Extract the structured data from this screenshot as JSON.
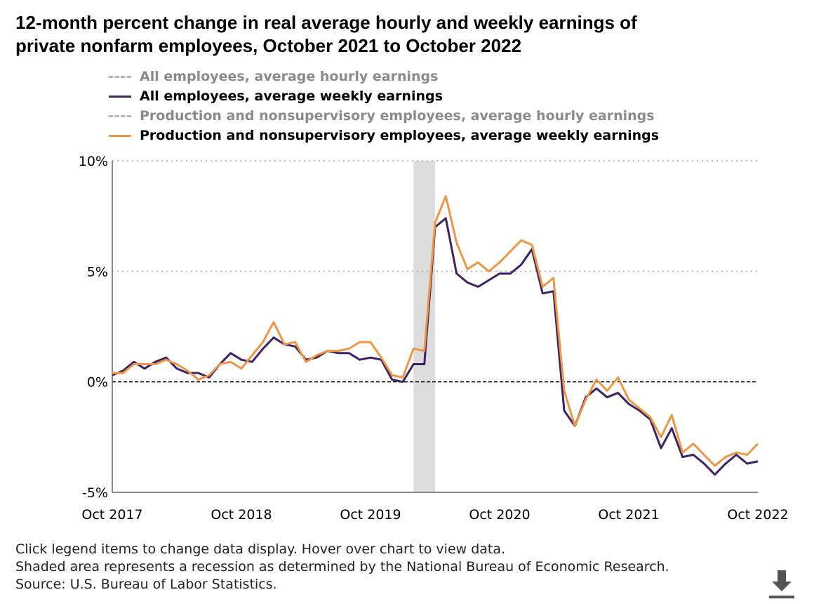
{
  "title_line1": "12-month percent change in real average hourly and weekly earnings of",
  "title_line2": "private nonfarm employees, October 2021 to October 2022",
  "legend": [
    {
      "label": "All employees, average hourly earnings",
      "active": false,
      "color": "#b3b3b3",
      "style": "dashed"
    },
    {
      "label": "All employees, average weekly earnings",
      "active": true,
      "color": "#3d2266",
      "style": "solid"
    },
    {
      "label": "Production and nonsupervisory employees, average hourly earnings",
      "active": false,
      "color": "#b3b3b3",
      "style": "dashed"
    },
    {
      "label": "Production and nonsupervisory employees, average weekly earnings",
      "active": true,
      "color": "#ee9644",
      "style": "solid"
    }
  ],
  "notes": [
    "Click legend items to change data display. Hover over chart to view data.",
    "Shaded area represents a recession as determined by the National Bureau of Economic Research.",
    "Source: U.S. Bureau of Labor Statistics."
  ],
  "colors": {
    "all_weekly": "#3d2266",
    "prod_weekly": "#ee9644",
    "recession": "#dcdcdc",
    "axis": "#000000",
    "grid": "#aaaaaa",
    "download": "#555555"
  },
  "chart_data": {
    "type": "line",
    "title": "12-month percent change in real average hourly and weekly earnings of private nonfarm employees, October 2021 to October 2022",
    "xlabel": "",
    "ylabel": "",
    "x_start": "Oct 2017",
    "x_end": "Oct 2022",
    "x_ticks": [
      {
        "label": "Oct 2017",
        "index": 0
      },
      {
        "label": "Oct 2018",
        "index": 12
      },
      {
        "label": "Oct 2019",
        "index": 24
      },
      {
        "label": "Oct 2020",
        "index": 36
      },
      {
        "label": "Oct 2021",
        "index": 48
      },
      {
        "label": "Oct 2022",
        "index": 60
      }
    ],
    "y_ticks": [
      {
        "label": "10%",
        "value": 10
      },
      {
        "label": "5%",
        "value": 5
      },
      {
        "label": "0%",
        "value": 0
      },
      {
        "label": "-5%",
        "value": -5
      }
    ],
    "ylim": [
      -5,
      10
    ],
    "x_range": [
      0,
      60
    ],
    "grid": "dotted horizontal",
    "zero_line": "dashed",
    "recession": {
      "start_index": 28,
      "end_index": 30,
      "label": "Feb 2020 - Apr 2020"
    },
    "series": [
      {
        "name": "All employees, average weekly earnings",
        "values": [
          0.3,
          0.5,
          0.9,
          0.6,
          0.9,
          1.1,
          0.6,
          0.4,
          0.4,
          0.2,
          0.8,
          1.3,
          1.0,
          0.9,
          1.5,
          2.0,
          1.7,
          1.6,
          1.0,
          1.1,
          1.4,
          1.3,
          1.3,
          1.0,
          1.1,
          1.0,
          0.1,
          0.0,
          0.8,
          0.8,
          7.0,
          7.4,
          4.9,
          4.5,
          4.3,
          4.6,
          4.9,
          4.9,
          5.3,
          6.0,
          4.0,
          4.1,
          -1.3,
          -2.0,
          -0.7,
          -0.3,
          -0.7,
          -0.5,
          -1.0,
          -1.3,
          -1.7,
          -3.0,
          -2.1,
          -3.4,
          -3.3,
          -3.7,
          -4.2,
          -3.7,
          -3.3,
          -3.7,
          -3.6
        ]
      },
      {
        "name": "Production and nonsupervisory employees, average weekly earnings",
        "values": [
          0.4,
          0.4,
          0.8,
          0.8,
          0.8,
          1.0,
          0.8,
          0.5,
          0.1,
          0.3,
          0.8,
          0.9,
          0.6,
          1.2,
          1.8,
          2.7,
          1.7,
          1.8,
          0.9,
          1.2,
          1.4,
          1.4,
          1.5,
          1.8,
          1.8,
          1.1,
          0.3,
          0.2,
          1.5,
          1.4,
          7.2,
          8.4,
          6.3,
          5.1,
          5.4,
          5.0,
          5.4,
          5.9,
          6.4,
          6.2,
          4.3,
          4.7,
          -0.4,
          -2.0,
          -0.8,
          0.1,
          -0.4,
          0.2,
          -0.8,
          -1.2,
          -1.6,
          -2.5,
          -1.5,
          -3.2,
          -2.8,
          -3.3,
          -3.8,
          -3.4,
          -3.2,
          -3.3,
          -2.8
        ]
      }
    ]
  }
}
